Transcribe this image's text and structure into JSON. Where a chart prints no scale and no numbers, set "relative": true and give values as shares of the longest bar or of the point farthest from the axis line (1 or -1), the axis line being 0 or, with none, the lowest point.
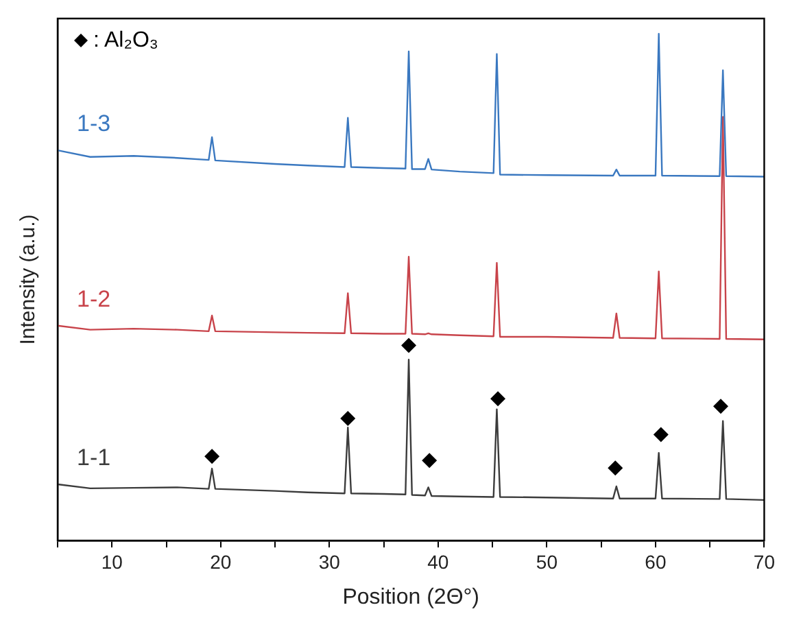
{
  "chart_data": {
    "type": "line",
    "xlabel": "Position (2Θ°)",
    "ylabel": "Intensity (a.u.)",
    "relative": true,
    "grid": false,
    "legend": "top left",
    "marker": "none",
    "xlim": [
      5,
      70
    ],
    "xticks": [
      {
        "value": 5,
        "label": null
      },
      10,
      {
        "value": 15,
        "label": null
      },
      20,
      {
        "value": 25,
        "label": null
      },
      30,
      {
        "value": 35,
        "label": null
      },
      40,
      {
        "value": 45,
        "label": null
      },
      50,
      {
        "value": 55,
        "label": null
      },
      60,
      {
        "value": 65,
        "label": null
      },
      70
    ],
    "x": [
      5,
      8,
      12,
      16,
      18.9,
      19.2,
      19.5,
      25,
      28,
      31.4,
      31.7,
      32.0,
      35,
      37.0,
      37.3,
      37.6,
      38.8,
      39.1,
      39.4,
      42,
      45.1,
      45.4,
      45.7,
      50,
      56.1,
      56.4,
      56.7,
      60.0,
      60.3,
      60.6,
      65.9,
      66.2,
      66.5,
      70
    ],
    "series": [
      {
        "name": "1-3",
        "color": "#3a78c0",
        "values": [
          0.77,
          0.757,
          0.759,
          0.755,
          0.751,
          0.796,
          0.75,
          0.743,
          0.74,
          0.737,
          0.834,
          0.737,
          0.735,
          0.734,
          0.965,
          0.733,
          0.733,
          0.753,
          0.732,
          0.728,
          0.725,
          0.96,
          0.722,
          0.721,
          0.72,
          0.732,
          0.72,
          0.72,
          1.0,
          0.72,
          0.719,
          0.928,
          0.719,
          0.718
        ]
      },
      {
        "name": "1-2",
        "color": "#c8434a",
        "values": [
          0.424,
          0.416,
          0.418,
          0.416,
          0.413,
          0.444,
          0.413,
          0.411,
          0.41,
          0.409,
          0.488,
          0.409,
          0.408,
          0.408,
          0.56,
          0.408,
          0.407,
          0.409,
          0.407,
          0.405,
          0.403,
          0.548,
          0.402,
          0.402,
          0.4,
          0.448,
          0.4,
          0.399,
          0.531,
          0.399,
          0.398,
          0.836,
          0.398,
          0.397
        ]
      },
      {
        "name": "1-1",
        "color": "#3c3c3c",
        "values": [
          0.111,
          0.103,
          0.104,
          0.105,
          0.102,
          0.142,
          0.102,
          0.098,
          0.095,
          0.093,
          0.223,
          0.093,
          0.092,
          0.091,
          0.357,
          0.09,
          0.089,
          0.105,
          0.088,
          0.087,
          0.086,
          0.259,
          0.086,
          0.085,
          0.083,
          0.107,
          0.083,
          0.083,
          0.173,
          0.083,
          0.082,
          0.236,
          0.082,
          0.08
        ]
      },
      {
        "name": ": Al₂O₃",
        "type": "scatter",
        "marker": "diamond",
        "color": "#000000",
        "x": [
          19.2,
          31.7,
          37.3,
          39.2,
          45.5,
          56.3,
          60.5,
          66.0
        ],
        "values": [
          0.166,
          0.241,
          0.385,
          0.158,
          0.28,
          0.143,
          0.209,
          0.265
        ]
      }
    ]
  }
}
